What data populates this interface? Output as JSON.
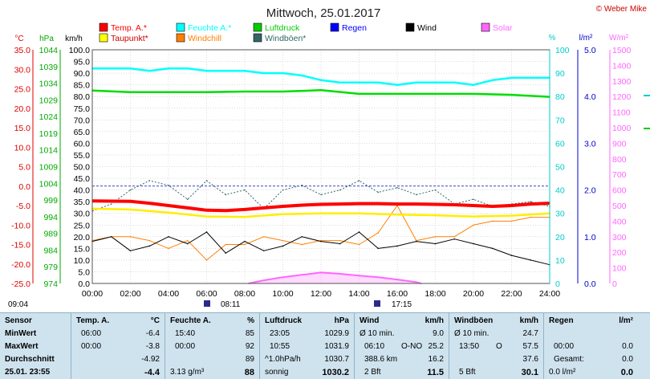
{
  "title": "Mittwoch, 25.01.2017",
  "copyright": "© Weber Mike",
  "legend": [
    {
      "label": "Temp. A.*",
      "color": "#ff0000"
    },
    {
      "label": "Feuchte A.*",
      "color": "#00ffff"
    },
    {
      "label": "Luftdruck",
      "color": "#00cc00"
    },
    {
      "label": "Regen",
      "color": "#0000ff"
    },
    {
      "label": "Wind",
      "color": "#000000"
    },
    {
      "label": "Solar",
      "color": "#ff66ff"
    },
    {
      "label": "Taupunkt*",
      "color": "#ffff00"
    },
    {
      "label": "Windchill",
      "color": "#ff8000"
    },
    {
      "label": "Windböen*",
      "color": "#336666"
    }
  ],
  "axes": {
    "temp_unit": "°C",
    "hpa_unit": "hPa",
    "kmh_unit": "km/h",
    "pct_unit": "%",
    "rain_unit": "l/m²",
    "solar_unit": "W/m²",
    "temp_ticks": [
      "35.0",
      "30.0",
      "25.0",
      "20.0",
      "15.0",
      "10.0",
      "5.0",
      "0.0",
      "-5.0",
      "-10.0",
      "-15.0",
      "-20.0",
      "-25.0"
    ],
    "hpa_ticks": [
      "1044",
      "1039",
      "1034",
      "1029",
      "1024",
      "1019",
      "1014",
      "1009",
      "1004",
      "999",
      "994",
      "989",
      "984",
      "979",
      "974"
    ],
    "kmh_ticks": [
      "100.0",
      "95.0",
      "90.0",
      "85.0",
      "80.0",
      "75.0",
      "70.0",
      "65.0",
      "60.0",
      "55.0",
      "50.0",
      "45.0",
      "40.0",
      "35.0",
      "30.0",
      "25.0",
      "20.0",
      "15.0",
      "10.0",
      "5.0",
      "0.0"
    ],
    "pct_ticks": [
      "100",
      "90",
      "80",
      "70",
      "60",
      "50",
      "40",
      "30",
      "20",
      "10",
      "0"
    ],
    "rain_ticks": [
      "5.0",
      "4.0",
      "3.0",
      "2.0",
      "1.0",
      "0.0"
    ],
    "solar_ticks": [
      "1500",
      "1400",
      "1300",
      "1200",
      "1100",
      "1000",
      "900",
      "800",
      "700",
      "600",
      "500",
      "400",
      "300",
      "200",
      "100",
      "0"
    ],
    "x_ticks": [
      "00:00",
      "02:00",
      "04:00",
      "06:00",
      "08:00",
      "10:00",
      "12:00",
      "14:00",
      "16:00",
      "18:00",
      "20:00",
      "22:00",
      "24:00"
    ]
  },
  "events": {
    "time_left": "09:04",
    "sunrise": "08:11",
    "sunset": "17:15"
  },
  "chart_data": {
    "type": "line",
    "x_label": "hours",
    "xlim": [
      0,
      24
    ],
    "series": [
      {
        "name": "Temp. A.*",
        "axis": "°C",
        "x": [
          0,
          2,
          3,
          4,
          5,
          6,
          7,
          8,
          9,
          10,
          11,
          12,
          13,
          14,
          15,
          16,
          17,
          18,
          19,
          20,
          21,
          22,
          23,
          24
        ],
        "y": [
          -3.8,
          -3.9,
          -4.4,
          -5.0,
          -5.6,
          -6.2,
          -6.3,
          -6.0,
          -5.6,
          -5.2,
          -4.9,
          -4.7,
          -4.6,
          -4.5,
          -4.5,
          -4.6,
          -4.6,
          -4.7,
          -4.8,
          -5.0,
          -5.2,
          -5.0,
          -4.6,
          -4.4
        ]
      },
      {
        "name": "Feuchte A.*",
        "axis": "%",
        "x": [
          0,
          2,
          3,
          4,
          5,
          6,
          7,
          8,
          9,
          10,
          11,
          12,
          13,
          14,
          15,
          16,
          17,
          18,
          19,
          20,
          21,
          22,
          23,
          24
        ],
        "y": [
          92,
          92,
          91,
          92,
          92,
          91,
          91,
          91,
          90,
          90,
          89,
          87,
          86,
          86,
          86,
          85,
          86,
          86,
          86,
          85,
          87,
          88,
          88,
          88
        ]
      },
      {
        "name": "Luftdruck",
        "axis": "hPa",
        "x": [
          0,
          2,
          4,
          6,
          8,
          10,
          12,
          14,
          16,
          18,
          20,
          22,
          24
        ],
        "y": [
          1031.8,
          1031.3,
          1031.3,
          1031.3,
          1031.5,
          1031.5,
          1031.9,
          1030.8,
          1030.8,
          1030.8,
          1030.8,
          1030.5,
          1029.9
        ]
      },
      {
        "name": "Taupunkt*",
        "axis": "°C",
        "x": [
          0,
          2,
          4,
          6,
          8,
          10,
          12,
          14,
          16,
          18,
          20,
          22,
          24
        ],
        "y": [
          -5.8,
          -6.0,
          -6.8,
          -7.8,
          -7.9,
          -7.2,
          -7.0,
          -7.0,
          -7.3,
          -7.5,
          -7.8,
          -7.6,
          -7.0
        ]
      },
      {
        "name": "Solar",
        "axis": "W/m²",
        "x": [
          8.2,
          9,
          10,
          11,
          12,
          13,
          14,
          15,
          16,
          17,
          17.25
        ],
        "y": [
          0,
          20,
          40,
          55,
          70,
          62,
          50,
          40,
          25,
          8,
          0
        ]
      },
      {
        "name": "Wind",
        "axis": "km/h",
        "x": [
          0,
          1,
          2,
          3,
          4,
          5,
          6,
          7,
          8,
          9,
          10,
          11,
          12,
          13,
          14,
          15,
          16,
          17,
          18,
          19,
          20,
          21,
          22,
          23,
          24
        ],
        "y": [
          18,
          20,
          14,
          16,
          20,
          17,
          22,
          13,
          18,
          14,
          16,
          20,
          18,
          17,
          22,
          15,
          16,
          18,
          17,
          19,
          17,
          15,
          12,
          10,
          8
        ]
      },
      {
        "name": "Windböen*",
        "axis": "km/h",
        "x": [
          0,
          1,
          2,
          3,
          4,
          5,
          6,
          7,
          8,
          9,
          10,
          11,
          12,
          13,
          14,
          15,
          16,
          17,
          18,
          19,
          20,
          21,
          22,
          23,
          24
        ],
        "y": [
          31,
          34,
          40,
          44,
          42,
          36,
          44,
          38,
          40,
          32,
          40,
          42,
          38,
          40,
          44,
          39,
          41,
          38,
          40,
          34,
          36,
          33,
          34,
          35,
          33
        ]
      },
      {
        "name": "Windchill",
        "axis": "°C",
        "x": [
          0,
          1,
          2,
          3,
          4,
          5,
          6,
          7,
          8,
          9,
          10,
          11,
          12,
          13,
          14,
          15,
          16,
          17,
          18,
          19,
          20,
          21,
          22,
          23,
          24
        ],
        "y": [
          -14,
          -13,
          -13,
          -14,
          -16,
          -14,
          -19,
          -15,
          -15,
          -13,
          -14,
          -15,
          -14,
          -14,
          -15,
          -12,
          -5,
          -14,
          -13,
          -13,
          -10,
          -9,
          -9,
          -8,
          -8
        ]
      }
    ]
  },
  "summary": {
    "sensor": {
      "h": "Sensor",
      "min": "MinWert",
      "max": "MaxWert",
      "avg": "Durchschnitt",
      "date": "25.01. 23:55"
    },
    "temp": {
      "h": "Temp. A.",
      "u": "°C",
      "min_t": "06:00",
      "min_v": "-6.4",
      "max_t": "00:00",
      "max_v": "-3.8",
      "avg_v": "-4.92",
      "cur_v": "-4.4"
    },
    "hum": {
      "h": "Feuchte A.",
      "u": "%",
      "min_t": "15:40",
      "min_v": "85",
      "max_t": "00:00",
      "max_v": "92",
      "avg_v": "89",
      "cur_l": "3.13 g/m³",
      "cur_v": "88"
    },
    "press": {
      "h": "Luftdruck",
      "u": "hPa",
      "min_t": "23:05",
      "min_v": "1029.9",
      "max_t": "10:55",
      "max_v": "1031.9",
      "avg_l": "^1.0hPa/h",
      "avg_v": "1030.7",
      "cur_l": "sonnig",
      "cur_v": "1030.2"
    },
    "wind": {
      "h": "Wind",
      "u": "km/h",
      "min_l": "Ø 10 min.",
      "min_v": "9.0",
      "max_t": "06:10",
      "max_d": "O-NO",
      "max_v": "25.2",
      "avg_l": "388.6 km",
      "avg_v": "16.2",
      "cur_l": "2 Bft",
      "cur_v": "11.5"
    },
    "gust": {
      "h": "Windböen",
      "u": "km/h",
      "min_l": "Ø 10 min.",
      "min_v": "24.7",
      "max_t": "13:50",
      "max_d": "O",
      "max_v": "57.5",
      "avg_v": "37.6",
      "cur_l": "5 Bft",
      "cur_v": "30.1"
    },
    "rain": {
      "h": "Regen",
      "u": "l/m²",
      "max_t": "00:00",
      "max_v": "0.0",
      "avg_l": "Gesamt:",
      "avg_v": "0.0",
      "cur_l": "0.0 l/m²",
      "cur_v": "0.0"
    }
  }
}
